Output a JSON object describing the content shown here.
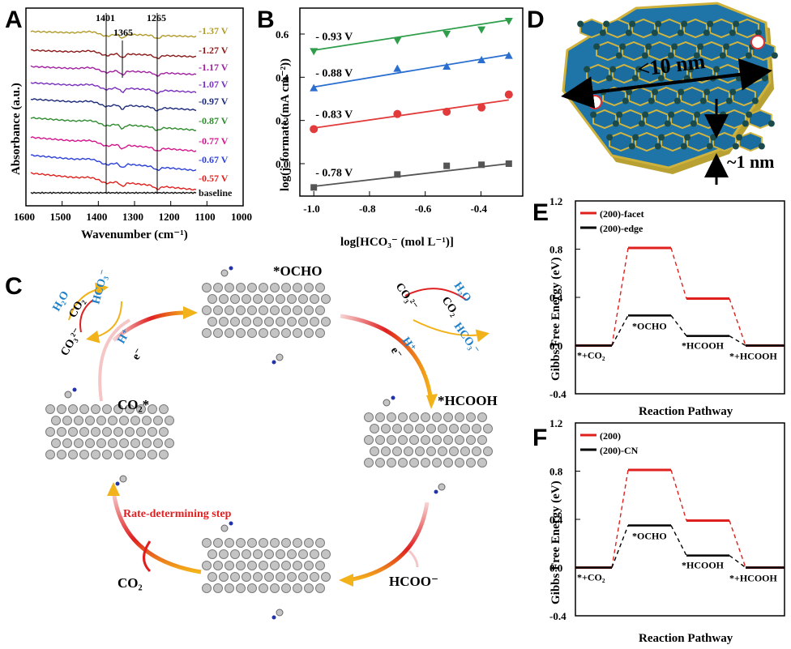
{
  "panels": {
    "a": "A",
    "b": "B",
    "c": "C",
    "d": "D",
    "e": "E",
    "f": "F"
  },
  "chart_data": [
    {
      "type": "line",
      "panel": "A",
      "xlabel": "Wavenumber (cm⁻¹)",
      "ylabel": "Absorbance (a.u.)",
      "xlim": [
        1600,
        1000
      ],
      "xticks": [
        "1600",
        "1500",
        "1400",
        "1300",
        "1200",
        "1100",
        "1000"
      ],
      "annotations": [
        "1401",
        "1365",
        "1265"
      ],
      "series": [
        {
          "name": "-1.37 V",
          "color": "#b29a2a"
        },
        {
          "name": "-1.27 V",
          "color": "#8b1a1a"
        },
        {
          "name": "-1.17 V",
          "color": "#a020a0"
        },
        {
          "name": "-1.07 V",
          "color": "#7b2fbe"
        },
        {
          "name": "-0.97 V",
          "color": "#1c2a7a"
        },
        {
          "name": "-0.87 V",
          "color": "#2e8b2e"
        },
        {
          "name": "-0.77 V",
          "color": "#d4148c"
        },
        {
          "name": "-0.67 V",
          "color": "#2b3fd8"
        },
        {
          "name": "-0.57 V",
          "color": "#e0201c"
        },
        {
          "name": "baseline",
          "color": "#111111"
        }
      ]
    },
    {
      "type": "scatter",
      "panel": "B",
      "xlabel": "log[HCO₃⁻ (mol L⁻¹)]",
      "ylabel": "log(j_formate (mA cm⁻²))",
      "xlim": [
        -1.05,
        -0.25
      ],
      "ylim": [
        -0.15,
        0.72
      ],
      "xticks": [
        "-1.0",
        "-0.8",
        "-0.6",
        "-0.4"
      ],
      "yticks": [
        "0.0",
        "0.2",
        "0.4",
        "0.6"
      ],
      "x": [
        -1.0,
        -0.7,
        -0.523,
        -0.398,
        -0.3
      ],
      "series": [
        {
          "name": "- 0.93 V",
          "color": "#2e9e4a",
          "marker": "triangle-down",
          "values": [
            0.52,
            0.57,
            0.6,
            0.62,
            0.66
          ],
          "fit": [
            0.525,
            0.665
          ]
        },
        {
          "name": "- 0.88 V",
          "color": "#2a6fcf",
          "marker": "triangle-up",
          "values": [
            0.35,
            0.44,
            0.45,
            0.48,
            0.5
          ],
          "fit": [
            0.355,
            0.505
          ]
        },
        {
          "name": "- 0.83 V",
          "color": "#e23b3b",
          "marker": "circle",
          "values": [
            0.16,
            0.23,
            0.24,
            0.26,
            0.32
          ],
          "fit": [
            0.165,
            0.295
          ]
        },
        {
          "name": "- 0.78 V",
          "color": "#555555",
          "marker": "square",
          "values": [
            -0.11,
            -0.05,
            -0.01,
            -0.005,
            0.0
          ],
          "fit": [
            -0.105,
            0.0
          ]
        }
      ]
    },
    {
      "type": "line",
      "panel": "E",
      "ylabel": "Gibbs Free Energy (eV)",
      "xlabel": "Reaction Pathway",
      "ylim": [
        -0.4,
        1.2
      ],
      "yticks": [
        "-0.4",
        "0.0",
        "0.4",
        "0.8",
        "1.2"
      ],
      "steps": [
        "*+CO₂",
        "*OCHO",
        "*HCOOH",
        "*+HCOOH"
      ],
      "series": [
        {
          "name": "(200)-facet",
          "color": "#e0201c",
          "values": [
            0.0,
            0.81,
            0.39,
            0.0
          ]
        },
        {
          "name": "(200)-edge",
          "color": "#000000",
          "values": [
            0.0,
            0.25,
            0.08,
            0.0
          ]
        }
      ]
    },
    {
      "type": "line",
      "panel": "F",
      "ylabel": "Gibbs Free Energy (eV)",
      "xlabel": "Reaction Pathway",
      "ylim": [
        -0.4,
        1.2
      ],
      "yticks": [
        "-0.4",
        "0.0",
        "0.4",
        "0.8",
        "1.2"
      ],
      "steps": [
        "*+CO₂",
        "*OCHO",
        "*HCOOH",
        "*+HCOOH"
      ],
      "series": [
        {
          "name": "(200)",
          "color": "#e0201c",
          "values": [
            0.0,
            0.81,
            0.39,
            0.0
          ]
        },
        {
          "name": "(200)-CN",
          "color": "#000000",
          "values": [
            0.0,
            0.35,
            0.1,
            0.0
          ]
        }
      ]
    }
  ],
  "panel_c": {
    "species": [
      "*OCHO",
      "*HCOOH",
      "HCOO⁻",
      "CO₂*",
      "CO₂"
    ],
    "rds": "Rate-determining step",
    "left_cycle": [
      "H₂O",
      "CO₂",
      "HCO₃⁻",
      "CO₃²⁻",
      "H⁺",
      "e⁻"
    ],
    "right_cycle": [
      "CO₃²⁻",
      "H₂O",
      "CO₂",
      "HCO₃⁻",
      "H⁺",
      "e⁻"
    ]
  },
  "panel_d": {
    "size_label": "<10 nm",
    "thick_label": "~1 nm"
  }
}
